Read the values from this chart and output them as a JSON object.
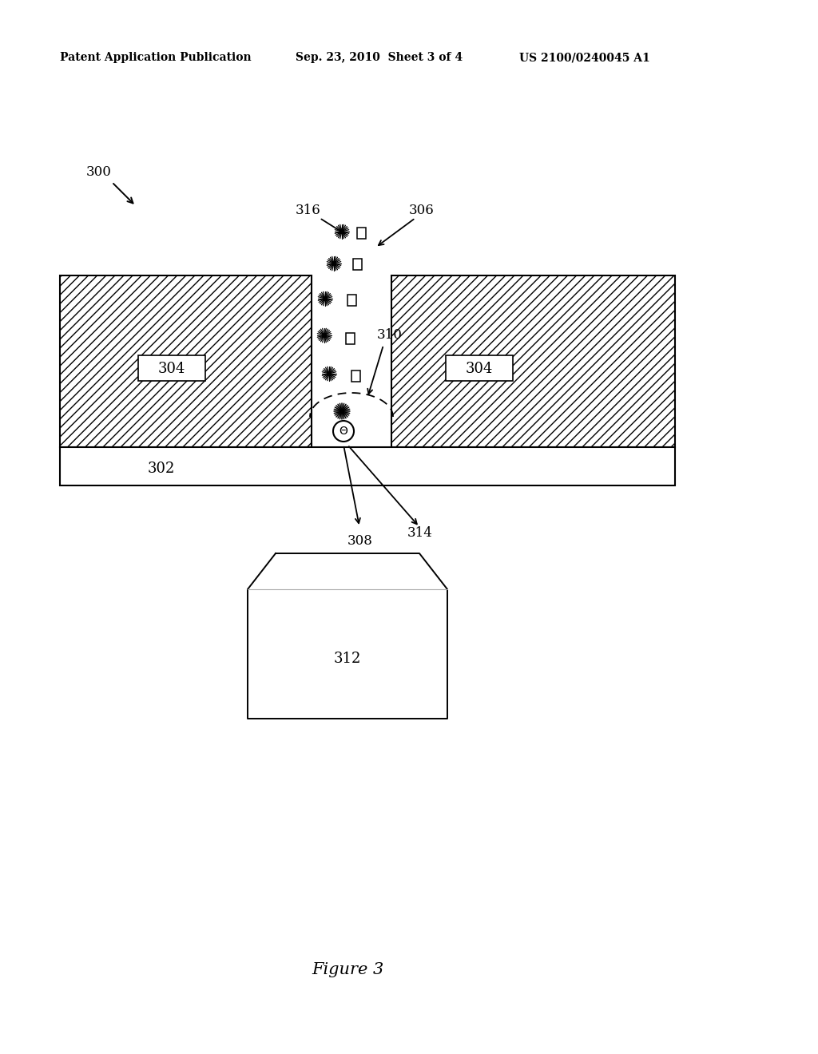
{
  "bg_color": "#ffffff",
  "header_left": "Patent Application Publication",
  "header_mid": "Sep. 23, 2010  Sheet 3 of 4",
  "header_right": "US 2100/0240045 A1",
  "figure_label": "Figure 3",
  "label_300": "300",
  "label_302": "302",
  "label_304_left": "304",
  "label_304_right": "304",
  "label_306": "306",
  "label_308": "308",
  "label_310": "310",
  "label_312": "312",
  "label_314": "314",
  "label_316": "316",
  "header_right_correct": "US 2100/0240045 A1"
}
